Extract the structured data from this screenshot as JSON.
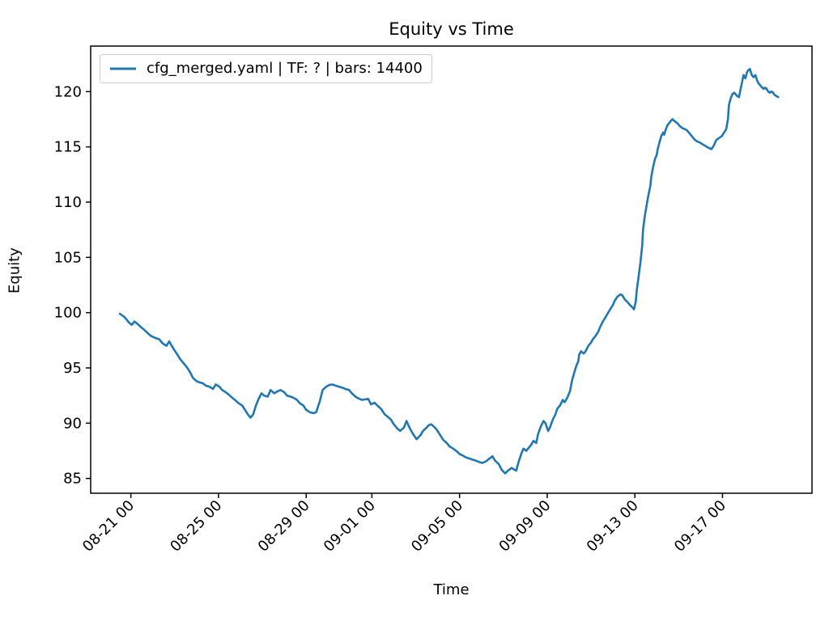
{
  "chart_data": {
    "type": "line",
    "title": "Equity vs Time",
    "xlabel": "Time",
    "ylabel": "Equity",
    "line_color": "#1f77b4",
    "legend_entries": [
      "cfg_merged.yaml | TF: ? | bars: 14400"
    ],
    "legend_position": "upper left",
    "grid": false,
    "x_ticks": [
      "08-21 00",
      "08-25 00",
      "08-29 00",
      "09-01 00",
      "09-05 00",
      "09-09 00",
      "09-13 00",
      "09-17 00"
    ],
    "y_ticks": [
      85,
      90,
      95,
      100,
      105,
      110,
      115,
      120
    ],
    "xlim": [
      "08-19 04",
      "09-21 02"
    ],
    "ylim": [
      83.66,
      124.12
    ],
    "points": [
      [
        "08-20 12",
        99.9
      ],
      [
        "08-20 17",
        99.6
      ],
      [
        "08-20 22",
        99.1
      ],
      [
        "08-21 01",
        98.9
      ],
      [
        "08-21 04",
        99.2
      ],
      [
        "08-21 07",
        99.0
      ],
      [
        "08-21 11",
        98.7
      ],
      [
        "08-21 14",
        98.5
      ],
      [
        "08-21 19",
        98.1
      ],
      [
        "08-21 22",
        97.9
      ],
      [
        "08-22 03",
        97.7
      ],
      [
        "08-22 07",
        97.6
      ],
      [
        "08-22 11",
        97.2
      ],
      [
        "08-22 15",
        97.0
      ],
      [
        "08-22 18",
        97.4
      ],
      [
        "08-22 20",
        97.1
      ],
      [
        "08-22 23",
        96.7
      ],
      [
        "08-23 03",
        96.2
      ],
      [
        "08-23 06",
        95.8
      ],
      [
        "08-23 10",
        95.4
      ],
      [
        "08-23 13",
        95.1
      ],
      [
        "08-23 17",
        94.6
      ],
      [
        "08-23 20",
        94.1
      ],
      [
        "08-24 00",
        93.8
      ],
      [
        "08-24 03",
        93.7
      ],
      [
        "08-24 07",
        93.6
      ],
      [
        "08-24 10",
        93.4
      ],
      [
        "08-24 14",
        93.3
      ],
      [
        "08-24 18",
        93.1
      ],
      [
        "08-24 21",
        93.5
      ],
      [
        "08-25 01",
        93.3
      ],
      [
        "08-25 04",
        93.0
      ],
      [
        "08-25 08",
        92.8
      ],
      [
        "08-25 11",
        92.6
      ],
      [
        "08-25 15",
        92.3
      ],
      [
        "08-25 18",
        92.1
      ],
      [
        "08-25 22",
        91.8
      ],
      [
        "08-26 02",
        91.6
      ],
      [
        "08-26 05",
        91.2
      ],
      [
        "08-26 09",
        90.7
      ],
      [
        "08-26 11",
        90.5
      ],
      [
        "08-26 14",
        90.8
      ],
      [
        "08-26 17",
        91.6
      ],
      [
        "08-26 20",
        92.2
      ],
      [
        "08-26 23",
        92.7
      ],
      [
        "08-27 02",
        92.5
      ],
      [
        "08-27 06",
        92.4
      ],
      [
        "08-27 09",
        93.0
      ],
      [
        "08-27 13",
        92.7
      ],
      [
        "08-27 17",
        92.9
      ],
      [
        "08-27 20",
        93.0
      ],
      [
        "08-28 00",
        92.8
      ],
      [
        "08-28 03",
        92.5
      ],
      [
        "08-28 07",
        92.4
      ],
      [
        "08-28 10",
        92.3
      ],
      [
        "08-28 14",
        92.1
      ],
      [
        "08-28 17",
        91.8
      ],
      [
        "08-28 21",
        91.6
      ],
      [
        "08-29 00",
        91.2
      ],
      [
        "08-29 04",
        91.0
      ],
      [
        "08-29 08",
        90.9
      ],
      [
        "08-29 11",
        91.0
      ],
      [
        "08-29 15",
        92.0
      ],
      [
        "08-29 18",
        93.0
      ],
      [
        "08-29 22",
        93.3
      ],
      [
        "08-30 01",
        93.45
      ],
      [
        "08-30 05",
        93.5
      ],
      [
        "08-30 08",
        93.4
      ],
      [
        "08-30 12",
        93.3
      ],
      [
        "08-30 16",
        93.2
      ],
      [
        "08-30 19",
        93.1
      ],
      [
        "08-30 23",
        93.0
      ],
      [
        "08-31 02",
        92.7
      ],
      [
        "08-31 06",
        92.4
      ],
      [
        "08-31 09",
        92.25
      ],
      [
        "08-31 13",
        92.1
      ],
      [
        "08-31 16",
        92.15
      ],
      [
        "08-31 20",
        92.2
      ],
      [
        "08-31 23",
        91.7
      ],
      [
        "09-01 03",
        91.85
      ],
      [
        "09-01 06",
        91.6
      ],
      [
        "09-01 10",
        91.3
      ],
      [
        "09-01 14",
        90.8
      ],
      [
        "09-01 17",
        90.6
      ],
      [
        "09-01 21",
        90.3
      ],
      [
        "09-02 00",
        89.9
      ],
      [
        "09-02 04",
        89.5
      ],
      [
        "09-02 07",
        89.3
      ],
      [
        "09-02 11",
        89.6
      ],
      [
        "09-02 14",
        90.2
      ],
      [
        "09-02 16",
        89.8
      ],
      [
        "09-02 19",
        89.3
      ],
      [
        "09-02 22",
        88.9
      ],
      [
        "09-03 01",
        88.55
      ],
      [
        "09-03 05",
        88.9
      ],
      [
        "09-03 08",
        89.3
      ],
      [
        "09-03 12",
        89.6
      ],
      [
        "09-03 14",
        89.8
      ],
      [
        "09-03 17",
        89.9
      ],
      [
        "09-03 21",
        89.6
      ],
      [
        "09-03 23",
        89.4
      ],
      [
        "09-04 03",
        88.9
      ],
      [
        "09-04 06",
        88.5
      ],
      [
        "09-04 10",
        88.2
      ],
      [
        "09-04 13",
        87.9
      ],
      [
        "09-04 17",
        87.7
      ],
      [
        "09-04 21",
        87.45
      ],
      [
        "09-05 00",
        87.2
      ],
      [
        "09-05 04",
        87.05
      ],
      [
        "09-05 07",
        86.9
      ],
      [
        "09-05 11",
        86.8
      ],
      [
        "09-05 14",
        86.7
      ],
      [
        "09-05 18",
        86.6
      ],
      [
        "09-05 21",
        86.5
      ],
      [
        "09-06 01",
        86.4
      ],
      [
        "09-06 05",
        86.55
      ],
      [
        "09-06 08",
        86.75
      ],
      [
        "09-06 12",
        87.0
      ],
      [
        "09-06 15",
        86.6
      ],
      [
        "09-06 19",
        86.3
      ],
      [
        "09-06 22",
        85.8
      ],
      [
        "09-07 02",
        85.45
      ],
      [
        "09-07 05",
        85.7
      ],
      [
        "09-07 09",
        85.95
      ],
      [
        "09-07 12",
        85.8
      ],
      [
        "09-07 14",
        85.7
      ],
      [
        "09-07 17",
        86.6
      ],
      [
        "09-07 20",
        87.3
      ],
      [
        "09-07 22",
        87.7
      ],
      [
        "09-08 01",
        87.5
      ],
      [
        "09-08 04",
        87.8
      ],
      [
        "09-08 06",
        88.0
      ],
      [
        "09-08 09",
        88.4
      ],
      [
        "09-08 12",
        88.2
      ],
      [
        "09-08 14",
        89.0
      ],
      [
        "09-08 17",
        89.7
      ],
      [
        "09-08 20",
        90.2
      ],
      [
        "09-08 22",
        90.0
      ],
      [
        "09-09 01",
        89.3
      ],
      [
        "09-09 03",
        89.6
      ],
      [
        "09-09 06",
        90.3
      ],
      [
        "09-09 09",
        90.8
      ],
      [
        "09-09 11",
        91.3
      ],
      [
        "09-09 14",
        91.6
      ],
      [
        "09-09 17",
        92.1
      ],
      [
        "09-09 19",
        91.9
      ],
      [
        "09-09 22",
        92.3
      ],
      [
        "09-10 01",
        92.9
      ],
      [
        "09-10 03",
        93.8
      ],
      [
        "09-10 06",
        94.7
      ],
      [
        "09-10 08",
        95.2
      ],
      [
        "09-10 10",
        95.6
      ],
      [
        "09-10 11",
        96.2
      ],
      [
        "09-10 13",
        96.5
      ],
      [
        "09-10 16",
        96.3
      ],
      [
        "09-10 18",
        96.5
      ],
      [
        "09-10 21",
        97.0
      ],
      [
        "09-11 00",
        97.3
      ],
      [
        "09-11 02",
        97.6
      ],
      [
        "09-11 05",
        97.9
      ],
      [
        "09-11 08",
        98.3
      ],
      [
        "09-11 10",
        98.7
      ],
      [
        "09-11 13",
        99.2
      ],
      [
        "09-11 16",
        99.6
      ],
      [
        "09-11 18",
        99.9
      ],
      [
        "09-11 21",
        100.3
      ],
      [
        "09-12 00",
        100.7
      ],
      [
        "09-12 02",
        101.1
      ],
      [
        "09-12 05",
        101.45
      ],
      [
        "09-12 08",
        101.65
      ],
      [
        "09-12 10",
        101.6
      ],
      [
        "09-12 13",
        101.2
      ],
      [
        "09-12 16",
        100.95
      ],
      [
        "09-12 18",
        100.75
      ],
      [
        "09-12 21",
        100.5
      ],
      [
        "09-12 23",
        100.3
      ],
      [
        "09-13 01",
        101.0
      ],
      [
        "09-13 02",
        102.0
      ],
      [
        "09-13 04",
        103.2
      ],
      [
        "09-13 06",
        104.5
      ],
      [
        "09-13 08",
        106.0
      ],
      [
        "09-13 09",
        107.5
      ],
      [
        "09-13 11",
        108.8
      ],
      [
        "09-13 13",
        109.8
      ],
      [
        "09-13 15",
        110.7
      ],
      [
        "09-13 17",
        111.5
      ],
      [
        "09-13 18",
        112.3
      ],
      [
        "09-13 20",
        113.2
      ],
      [
        "09-13 22",
        113.9
      ],
      [
        "09-14 00",
        114.3
      ],
      [
        "09-14 01",
        114.8
      ],
      [
        "09-14 03",
        115.4
      ],
      [
        "09-14 05",
        116.0
      ],
      [
        "09-14 07",
        116.3
      ],
      [
        "09-14 08",
        116.1
      ],
      [
        "09-14 10",
        116.6
      ],
      [
        "09-14 12",
        117.0
      ],
      [
        "09-14 14",
        117.2
      ],
      [
        "09-14 16",
        117.4
      ],
      [
        "09-14 17",
        117.5
      ],
      [
        "09-14 20",
        117.3
      ],
      [
        "09-14 23",
        117.1
      ],
      [
        "09-15 01",
        116.9
      ],
      [
        "09-15 04",
        116.7
      ],
      [
        "09-15 07",
        116.6
      ],
      [
        "09-15 09",
        116.5
      ],
      [
        "09-15 12",
        116.2
      ],
      [
        "09-15 15",
        115.9
      ],
      [
        "09-15 17",
        115.7
      ],
      [
        "09-15 20",
        115.5
      ],
      [
        "09-15 23",
        115.4
      ],
      [
        "09-16 01",
        115.3
      ],
      [
        "09-16 04",
        115.15
      ],
      [
        "09-16 07",
        115.0
      ],
      [
        "09-16 09",
        114.9
      ],
      [
        "09-16 12",
        114.8
      ],
      [
        "09-16 15",
        115.2
      ],
      [
        "09-16 17",
        115.6
      ],
      [
        "09-16 20",
        115.8
      ],
      [
        "09-16 23",
        115.95
      ],
      [
        "09-17 01",
        116.2
      ],
      [
        "09-17 04",
        116.6
      ],
      [
        "09-17 06",
        117.5
      ],
      [
        "09-17 07",
        118.8
      ],
      [
        "09-17 09",
        119.4
      ],
      [
        "09-17 11",
        119.8
      ],
      [
        "09-17 13",
        119.9
      ],
      [
        "09-17 15",
        119.7
      ],
      [
        "09-17 16",
        119.6
      ],
      [
        "09-17 18",
        119.5
      ],
      [
        "09-17 20",
        120.3
      ],
      [
        "09-17 22",
        121.1
      ],
      [
        "09-17 23",
        121.5
      ],
      [
        "09-18 01",
        121.2
      ],
      [
        "09-18 03",
        121.8
      ],
      [
        "09-18 05",
        122.0
      ],
      [
        "09-18 06",
        122.05
      ],
      [
        "09-18 08",
        121.5
      ],
      [
        "09-18 10",
        121.3
      ],
      [
        "09-18 12",
        121.5
      ],
      [
        "09-18 14",
        121.0
      ],
      [
        "09-18 15",
        120.8
      ],
      [
        "09-18 17",
        120.6
      ],
      [
        "09-18 19",
        120.4
      ],
      [
        "09-18 21",
        120.25
      ],
      [
        "09-18 22",
        120.35
      ],
      [
        "09-19 00",
        120.3
      ],
      [
        "09-19 02",
        120.0
      ],
      [
        "09-19 04",
        119.9
      ],
      [
        "09-19 05",
        120.0
      ],
      [
        "09-19 07",
        119.95
      ],
      [
        "09-19 09",
        119.7
      ],
      [
        "09-19 11",
        119.6
      ],
      [
        "09-19 13",
        119.5
      ]
    ]
  }
}
